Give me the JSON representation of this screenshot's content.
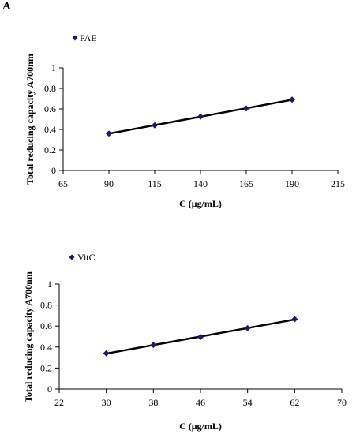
{
  "panel_label": "A",
  "chart_data": [
    {
      "type": "scatter",
      "legend": "PAE",
      "legend_position": "top-left",
      "xlabel": "C (μg/mL)",
      "ylabel": "Total reducing capacity A700nm",
      "xlim": [
        65,
        215
      ],
      "xticks": [
        65,
        90,
        115,
        140,
        165,
        190,
        215
      ],
      "ylim": [
        0,
        1
      ],
      "yticks": [
        "0",
        "0.2",
        "0.4",
        "0.6",
        "0.8",
        "1"
      ],
      "grid": false,
      "marker_color": "#1a1a6e",
      "trendline": true,
      "series": [
        {
          "name": "PAE",
          "x": [
            90,
            115,
            140,
            165,
            190
          ],
          "y": [
            0.36,
            0.44,
            0.525,
            0.605,
            0.69
          ]
        }
      ]
    },
    {
      "type": "scatter",
      "legend": "VitC",
      "legend_position": "top-left",
      "xlabel": "C (μg/mL)",
      "ylabel": "Total reducing capacity A700nm",
      "xlim": [
        22,
        70
      ],
      "xticks": [
        22,
        30,
        38,
        46,
        54,
        62,
        70
      ],
      "ylim": [
        0,
        1
      ],
      "yticks": [
        "0",
        "0.2",
        "0.4",
        "0.6",
        "0.8",
        "1"
      ],
      "grid": false,
      "marker_color": "#1a1a6e",
      "trendline": true,
      "series": [
        {
          "name": "VitC",
          "x": [
            30,
            38,
            46,
            54,
            62
          ],
          "y": [
            0.34,
            0.42,
            0.495,
            0.58,
            0.665
          ]
        }
      ]
    }
  ]
}
